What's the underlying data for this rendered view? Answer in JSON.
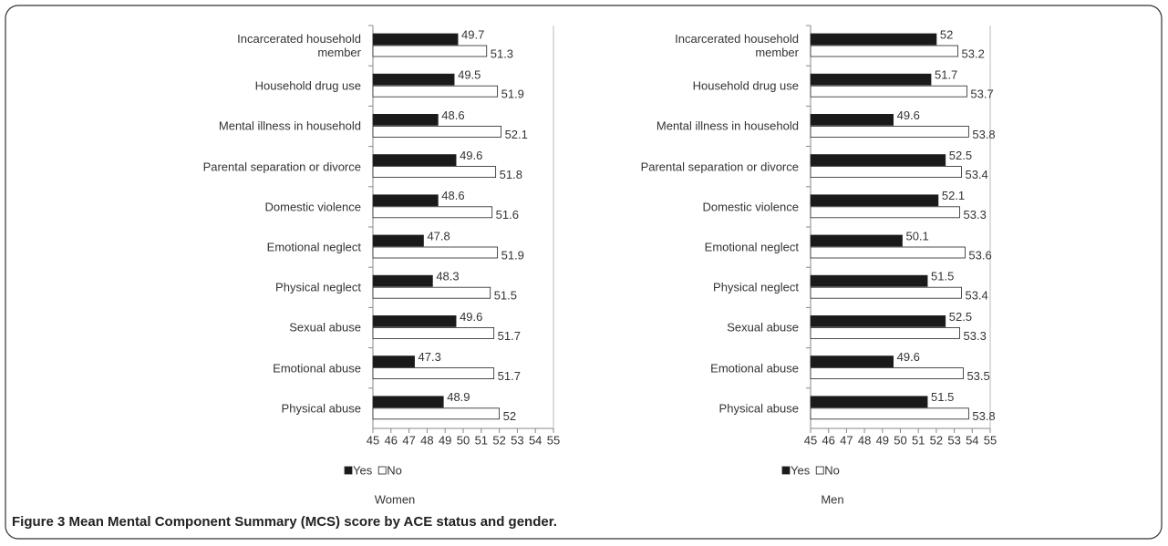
{
  "chart_data": [
    {
      "type": "bar",
      "orientation": "horizontal",
      "xlabel": "Women",
      "categories": [
        "Incarcerated household\nmember",
        "Household drug use",
        "Mental illness in household",
        "Parental separation or divorce",
        "Domestic violence",
        "Emotional neglect",
        "Physical neglect",
        "Sexual abuse",
        "Emotional abuse",
        "Physical abuse"
      ],
      "series": [
        {
          "name": "Yes",
          "color": "#1a1a1a",
          "values": [
            49.7,
            49.5,
            48.6,
            49.6,
            48.6,
            47.8,
            48.3,
            49.6,
            47.3,
            48.9
          ]
        },
        {
          "name": "No",
          "color": "#ffffff",
          "values": [
            51.3,
            51.9,
            52.1,
            51.8,
            51.6,
            51.9,
            51.5,
            51.7,
            51.7,
            52
          ]
        }
      ],
      "xlim": [
        45,
        55
      ],
      "xticks": [
        45,
        46,
        47,
        48,
        49,
        50,
        51,
        52,
        53,
        54,
        55
      ],
      "legend": "bottom-left"
    },
    {
      "type": "bar",
      "orientation": "horizontal",
      "xlabel": "Men",
      "categories": [
        "Incarcerated household\nmember",
        "Household drug use",
        "Mental illness in household",
        "Parental separation or divorce",
        "Domestic violence",
        "Emotional neglect",
        "Physical neglect",
        "Sexual abuse",
        "Emotional abuse",
        "Physical abuse"
      ],
      "series": [
        {
          "name": "Yes",
          "color": "#1a1a1a",
          "values": [
            52,
            51.7,
            49.6,
            52.5,
            52.1,
            50.1,
            51.5,
            52.5,
            49.6,
            51.5
          ]
        },
        {
          "name": "No",
          "color": "#ffffff",
          "values": [
            53.2,
            53.7,
            53.8,
            53.4,
            53.3,
            53.6,
            53.4,
            53.3,
            53.5,
            53.8
          ]
        }
      ],
      "xlim": [
        45,
        55
      ],
      "xticks": [
        45,
        46,
        47,
        48,
        49,
        50,
        51,
        52,
        53,
        54,
        55
      ],
      "legend": "bottom-left"
    }
  ],
  "caption": {
    "label": "Figure 3",
    "text": "Mean Mental Component Summary (MCS) score by ACE status and gender."
  }
}
